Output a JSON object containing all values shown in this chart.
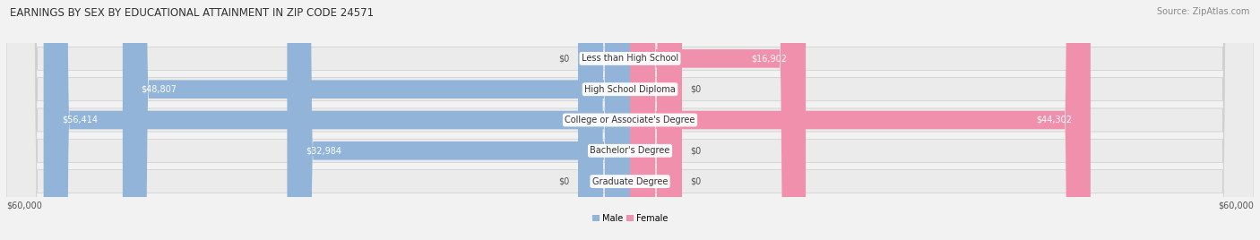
{
  "title": "EARNINGS BY SEX BY EDUCATIONAL ATTAINMENT IN ZIP CODE 24571",
  "source": "Source: ZipAtlas.com",
  "categories": [
    "Less than High School",
    "High School Diploma",
    "College or Associate's Degree",
    "Bachelor's Degree",
    "Graduate Degree"
  ],
  "male_values": [
    0,
    48807,
    56414,
    32984,
    0
  ],
  "female_values": [
    16902,
    0,
    44302,
    0,
    0
  ],
  "male_color": "#92b4d8",
  "female_color": "#f090ac",
  "male_label": "Male",
  "female_label": "Female",
  "max_value": 60000,
  "stub_value": 5000,
  "background_color": "#f2f2f2",
  "row_bg_color": "#e4e4e4",
  "row_bg_color2": "#ebebeb",
  "title_fontsize": 8.5,
  "source_fontsize": 7,
  "category_fontsize": 7,
  "value_fontsize": 7,
  "axis_fontsize": 7,
  "figsize": [
    14.06,
    2.68
  ],
  "dpi": 100
}
